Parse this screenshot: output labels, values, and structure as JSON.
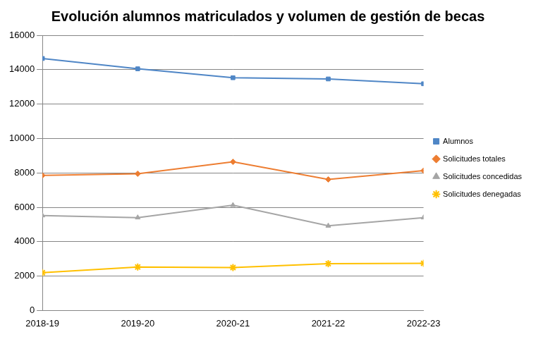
{
  "chart_data": {
    "type": "line",
    "title": "Evolución alumnos matriculados y volumen de gestión de becas",
    "categories": [
      "2018-19",
      "2019-20",
      "2020-21",
      "2021-22",
      "2022-23"
    ],
    "series": [
      {
        "name": "Alumnos",
        "color": "#4f86c6",
        "marker": "square",
        "values": [
          14650,
          14050,
          13530,
          13460,
          13180
        ]
      },
      {
        "name": "Solicitudes totales",
        "color": "#ed7d31",
        "marker": "diamond",
        "values": [
          7850,
          7950,
          8640,
          7620,
          8130
        ]
      },
      {
        "name": "Solicitudes concedidas",
        "color": "#a5a5a5",
        "marker": "triangle",
        "values": [
          5520,
          5400,
          6120,
          4920,
          5400
        ]
      },
      {
        "name": "Solicitudes denegadas",
        "color": "#ffc000",
        "marker": "star",
        "values": [
          2200,
          2530,
          2500,
          2720,
          2740
        ]
      }
    ],
    "ylim": [
      0,
      16000
    ],
    "yticks": [
      0,
      2000,
      4000,
      6000,
      8000,
      10000,
      12000,
      14000,
      16000
    ],
    "grid": true,
    "legend": "right"
  }
}
